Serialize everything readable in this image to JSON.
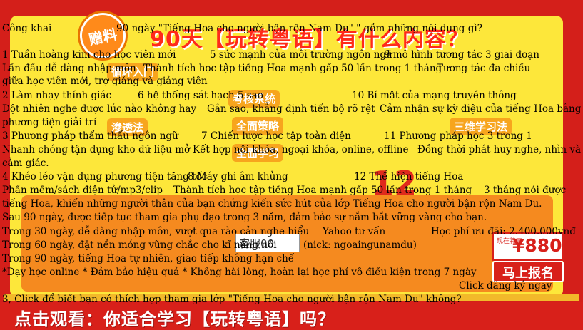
{
  "poster": {
    "badge_text": "赠料",
    "headline_cn": "90天【玩转粤语】有什么内容？",
    "bottom_cn": "点击观看：你适合学习【玩转粤语】吗？",
    "chips": [
      "循环入门",
      "考核系统",
      "渗透法",
      "全面策略",
      "三维学习法",
      "全面学习",
      "12"
    ],
    "price_tag": "现在特惠",
    "price_value": "¥880",
    "signup_label": "马上报名",
    "chat_label": "客服00"
  },
  "header": {
    "left": "Công khai",
    "question": "90 ngày \"Tiếng Hoa cho người bận rộn Nam Du\" \" gồm những nội dung gì?"
  },
  "rows": [
    {
      "titles": [
        "1  Tuần hoàng kim cho học viên mới",
        "5 sức mạnh của môi trường ngôn ngữ",
        "9 mô hình tương tác 3 giai đoạn"
      ],
      "desc": [
        " Lần đầu dễ dàng nhập môn",
        "Thành tích học tập tiếng Hoa mạnh gấp 50 lần trong 1 tháng",
        "Tương tác đa chiều"
      ],
      "desc2": "giữa học viên mới, trợ giảng và giảng viên"
    },
    {
      "titles": [
        "2 Làm nhạy thính giác",
        "6 hệ thống sát hạch 5 sao",
        "10 Bí mật của mạng truyền thông"
      ],
      "desc": [
        "Đột nhiên nghe được lúc nào không hay",
        "Gắn sao, khẳng định tiến bộ rõ rệt",
        "Cảm nhận sự kỳ diệu của tiếng Hoa bằng"
      ],
      "desc2": "phương tiện giải trí"
    },
    {
      "titles": [
        "3 Phương pháp thẩm thấu ngôn ngữ",
        "7 Chiến lược học tập toàn diện",
        "11 Phương pháp học 3 trong 1"
      ],
      "desc": [
        "Nhanh chóng tận dụng kho dữ liệu mở",
        "Kết hợp nội khóa, ngoại khóa, online, offline",
        "Đồng thời phát huy nghe, nhìn và"
      ],
      "desc2": "cảm giác."
    },
    {
      "titles": [
        "4 Khéo léo vận dụng phương tiện tăng tốc",
        "8 Máy ghi âm khủng",
        "12 Thể hiện tiếng Hoa"
      ],
      "desc": [
        "Phần mềm/sách điện tử/mp3/clip",
        "Thành tích học tập tiếng Hoa mạnh gấp 50 lần trong 1 tháng",
        "3 tháng nói được"
      ],
      "desc2": "tiếng Hoa, khiến những người thân của bạn chứng kiến sức hút của lớp Tiếng Hoa cho người bận rộn Nam Du."
    }
  ],
  "promo": {
    "after90": "Sau 90 ngày, được tiếp tục tham gia phụ đạo trong 3 năm, đảm bảo sự nắm bắt vững vàng cho bạn.",
    "day30": "Trong 30 ngày, dễ dàng nhập môn, vượt qua rào cản nghe hiểu",
    "yahoo": "Yahoo tư vấn",
    "fee": "Học phí ưu đãi: 2.400.000vnđ",
    "day60": "Trong 60 ngày, đặt nền móng vững chắc cho kĩ năng nói",
    "chat": "(nick: ngoaingunamdu)",
    "day90": "Trong 90 ngày, tiếng Hoa tự nhiên, giao tiếp không hạn chế",
    "guarantees": "*Dạy học online  * Đảm bảo hiệu quả  * Không hài lòng, hoàn lại học phí vô điều kiện trong 7 ngày",
    "signup_link": "Click đăng ký ngay"
  },
  "footer": {
    "question": "3,  Click để biết bạn có thích hợp tham gia lớp \"Tiếng Hoa cho người bận rộn Nam Du\" không?"
  }
}
